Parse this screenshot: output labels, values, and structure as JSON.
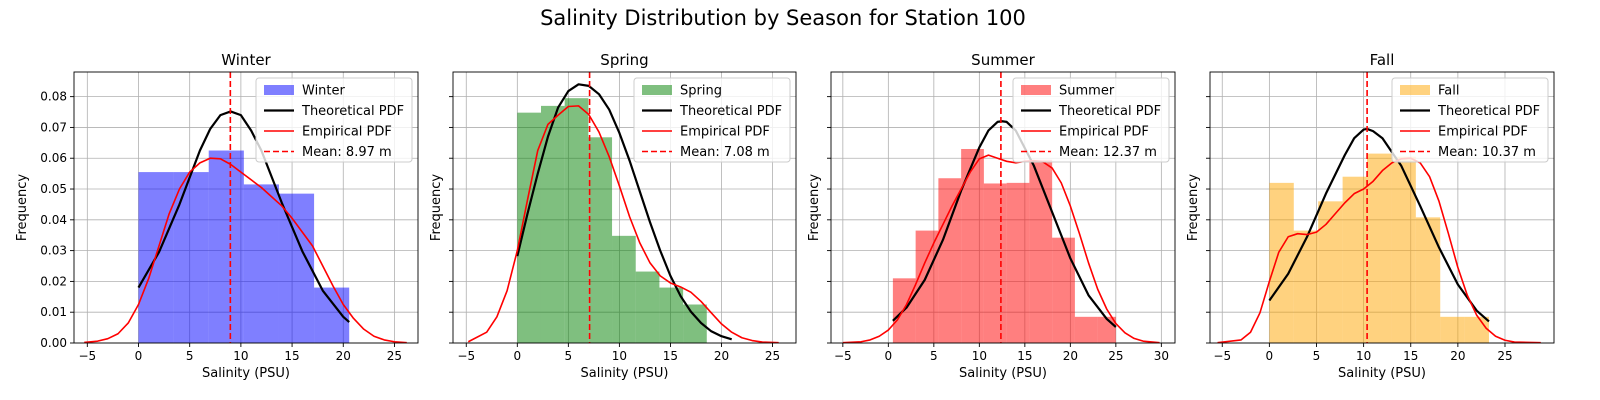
{
  "figure": {
    "title": "Salinity Distribution by Season for Station 100"
  },
  "chart_data": [
    {
      "type": "bar",
      "title": "Winter",
      "xlabel": "Salinity (PSU)",
      "ylabel": "Frequency",
      "xlim": [
        -6.3,
        27.3
      ],
      "ylim": [
        0,
        0.088
      ],
      "xticks": [
        "-5",
        "0",
        "5",
        "10",
        "15",
        "20",
        "25"
      ],
      "yticks": [
        "0.00",
        "0.01",
        "0.02",
        "0.03",
        "0.04",
        "0.05",
        "0.06",
        "0.07",
        "0.08"
      ],
      "grid": true,
      "legend_position": "top-right",
      "color": "#0000ff",
      "histogram": {
        "bin_edges": [
          0,
          3.43,
          6.86,
          10.29,
          13.72,
          17.15,
          20.58
        ],
        "values": [
          0.0555,
          0.0555,
          0.0625,
          0.0515,
          0.0485,
          0.018
        ]
      },
      "theoretical_pdf": {
        "x": [
          0,
          2,
          4,
          6,
          7,
          8,
          9,
          10,
          11,
          12,
          14,
          16,
          18,
          20,
          20.58
        ],
        "y": [
          0.018,
          0.0295,
          0.045,
          0.0625,
          0.0695,
          0.074,
          0.0752,
          0.074,
          0.069,
          0.0625,
          0.0455,
          0.0298,
          0.017,
          0.0085,
          0.0068
        ]
      },
      "empirical_pdf": {
        "x": [
          -5.3,
          -4,
          -3,
          -2,
          -1,
          0,
          1,
          2,
          3,
          4,
          5,
          6,
          7,
          8,
          9,
          10,
          11,
          12,
          13,
          14,
          15,
          16,
          17,
          18,
          19,
          20,
          21,
          22,
          23,
          24,
          25,
          26.2
        ],
        "y": [
          0.0002,
          0.0006,
          0.0014,
          0.003,
          0.0065,
          0.0125,
          0.021,
          0.0315,
          0.042,
          0.05,
          0.0555,
          0.0585,
          0.06,
          0.0598,
          0.058,
          0.0555,
          0.053,
          0.0505,
          0.0475,
          0.0445,
          0.0405,
          0.036,
          0.0315,
          0.025,
          0.0185,
          0.0125,
          0.008,
          0.0045,
          0.0022,
          0.001,
          0.0004,
          0.0001
        ]
      },
      "mean": 8.97,
      "legend": [
        "Winter",
        "Theoretical PDF",
        "Empirical PDF",
        "Mean: 8.97 m"
      ]
    },
    {
      "type": "bar",
      "title": "Spring",
      "xlabel": "Salinity (PSU)",
      "ylabel": "Frequency",
      "xlim": [
        -6.3,
        27.3
      ],
      "ylim": [
        0,
        0.088
      ],
      "xticks": [
        "-5",
        "0",
        "5",
        "10",
        "15",
        "20",
        "25"
      ],
      "yticks": [
        "0.00",
        "0.01",
        "0.02",
        "0.03",
        "0.04",
        "0.05",
        "0.06",
        "0.07",
        "0.08"
      ],
      "grid": true,
      "legend_position": "top-right",
      "color": "#008000",
      "histogram": {
        "bin_edges": [
          0,
          2.32,
          4.64,
          6.96,
          9.28,
          11.6,
          13.92,
          16.24,
          18.56
        ],
        "values": [
          0.0748,
          0.077,
          0.0795,
          0.0668,
          0.0348,
          0.0232,
          0.018,
          0.0125
        ]
      },
      "theoretical_pdf": {
        "x": [
          0,
          1,
          2,
          3,
          4,
          5,
          6,
          7,
          8,
          9,
          10,
          11,
          12,
          13,
          14,
          15,
          16,
          17,
          18,
          19,
          20,
          21
        ],
        "y": [
          0.0282,
          0.042,
          0.055,
          0.067,
          0.0765,
          0.0818,
          0.084,
          0.0835,
          0.0808,
          0.0758,
          0.0682,
          0.0592,
          0.0492,
          0.0392,
          0.03,
          0.0218,
          0.0152,
          0.0102,
          0.0065,
          0.0038,
          0.0022,
          0.0012
        ]
      },
      "empirical_pdf": {
        "x": [
          -4.8,
          -3,
          -2,
          -1,
          0,
          1,
          2,
          3,
          4,
          5,
          6,
          7,
          8,
          9,
          10,
          11,
          12,
          13,
          14,
          15,
          16,
          17,
          18,
          19,
          20,
          21,
          22,
          23,
          24,
          25.6
        ],
        "y": [
          0.0004,
          0.0035,
          0.0085,
          0.017,
          0.03,
          0.0465,
          0.0625,
          0.071,
          0.074,
          0.0768,
          0.077,
          0.0742,
          0.0685,
          0.0605,
          0.051,
          0.041,
          0.0325,
          0.026,
          0.0218,
          0.0195,
          0.0182,
          0.0165,
          0.0135,
          0.0098,
          0.0062,
          0.0035,
          0.0017,
          0.0008,
          0.0003,
          0.0001
        ]
      },
      "mean": 7.08,
      "legend": [
        "Spring",
        "Theoretical PDF",
        "Empirical PDF",
        "Mean: 7.08 m"
      ]
    },
    {
      "type": "bar",
      "title": "Summer",
      "xlabel": "Salinity (PSU)",
      "ylabel": "Frequency",
      "xlim": [
        -6.3,
        31.5
      ],
      "ylim": [
        0,
        0.088
      ],
      "xticks": [
        "-5",
        "0",
        "5",
        "10",
        "15",
        "20",
        "25",
        "30"
      ],
      "yticks": [
        "0.00",
        "0.01",
        "0.02",
        "0.03",
        "0.04",
        "0.05",
        "0.06",
        "0.07",
        "0.08"
      ],
      "grid": true,
      "legend_position": "top-right",
      "color": "#ff0000",
      "histogram": {
        "bin_edges": [
          0.5,
          3.0,
          5.5,
          8.0,
          10.5,
          13.0,
          15.5,
          18.0,
          20.5,
          23.0,
          25.0
        ],
        "values": [
          0.021,
          0.0365,
          0.0535,
          0.063,
          0.0518,
          0.052,
          0.0595,
          0.0342,
          0.0085,
          0.0085
        ]
      },
      "theoretical_pdf": {
        "x": [
          0.5,
          2,
          4,
          6,
          8,
          10,
          11,
          12,
          12.5,
          13,
          14,
          16,
          18,
          20,
          22,
          24,
          25
        ],
        "y": [
          0.0072,
          0.0115,
          0.0205,
          0.0335,
          0.0495,
          0.0635,
          0.069,
          0.0718,
          0.072,
          0.0718,
          0.069,
          0.0575,
          0.0425,
          0.0275,
          0.0155,
          0.0078,
          0.0052
        ]
      },
      "empirical_pdf": {
        "x": [
          -5,
          -3,
          -2,
          -1,
          0,
          1,
          2,
          3,
          4,
          5,
          6,
          7,
          8,
          9,
          10,
          11,
          12,
          13,
          14,
          15,
          16,
          17,
          18,
          19,
          20,
          21,
          22,
          23,
          24,
          25,
          26,
          27,
          28,
          29.8
        ],
        "y": [
          0.0001,
          0.0004,
          0.001,
          0.0022,
          0.0042,
          0.0075,
          0.0125,
          0.019,
          0.026,
          0.0325,
          0.0385,
          0.0445,
          0.05,
          0.0555,
          0.0598,
          0.061,
          0.06,
          0.059,
          0.0585,
          0.059,
          0.0592,
          0.0588,
          0.0568,
          0.052,
          0.0445,
          0.0355,
          0.026,
          0.0175,
          0.011,
          0.0063,
          0.0033,
          0.0015,
          0.0006,
          0.0001
        ]
      },
      "mean": 12.37,
      "legend": [
        "Summer",
        "Theoretical PDF",
        "Empirical PDF",
        "Mean: 12.37 m"
      ]
    },
    {
      "type": "bar",
      "title": "Fall",
      "xlabel": "Salinity (PSU)",
      "ylabel": "Frequency",
      "xlim": [
        -6.3,
        30.2
      ],
      "ylim": [
        0,
        0.088
      ],
      "xticks": [
        "-5",
        "0",
        "5",
        "10",
        "15",
        "20",
        "25"
      ],
      "yticks": [
        "0.00",
        "0.01",
        "0.02",
        "0.03",
        "0.04",
        "0.05",
        "0.06",
        "0.07",
        "0.08"
      ],
      "grid": true,
      "legend_position": "top-right",
      "color": "#ffa500",
      "histogram": {
        "bin_edges": [
          0,
          2.59,
          5.18,
          7.77,
          10.36,
          12.95,
          15.54,
          18.13,
          20.72,
          23.3
        ],
        "values": [
          0.052,
          0.0365,
          0.046,
          0.054,
          0.0615,
          0.0605,
          0.0408,
          0.0085,
          0.0085
        ]
      },
      "theoretical_pdf": {
        "x": [
          0,
          2,
          4,
          6,
          8,
          9,
          10,
          10.37,
          11,
          12,
          14,
          16,
          18,
          20,
          22,
          23.3
        ],
        "y": [
          0.0138,
          0.0225,
          0.0345,
          0.0485,
          0.061,
          0.0665,
          0.0693,
          0.0695,
          0.0688,
          0.0665,
          0.0575,
          0.0445,
          0.031,
          0.019,
          0.0105,
          0.007
        ]
      },
      "empirical_pdf": {
        "x": [
          -5.5,
          -3,
          -2,
          -1,
          0,
          1,
          2,
          3,
          4,
          5,
          6,
          7,
          8,
          9,
          10,
          11,
          12,
          13,
          14,
          15,
          16,
          17,
          18,
          19,
          20,
          21,
          22,
          23,
          24,
          25,
          26,
          28.8
        ],
        "y": [
          0.0001,
          0.001,
          0.0035,
          0.0098,
          0.02,
          0.0295,
          0.0345,
          0.0355,
          0.0352,
          0.036,
          0.0385,
          0.042,
          0.0455,
          0.0485,
          0.05,
          0.0525,
          0.056,
          0.0585,
          0.0598,
          0.06,
          0.0585,
          0.054,
          0.046,
          0.0355,
          0.0245,
          0.0155,
          0.009,
          0.0048,
          0.0022,
          0.0009,
          0.0003,
          0.0001
        ]
      },
      "mean": 10.37,
      "legend": [
        "Fall",
        "Theoretical PDF",
        "Empirical PDF",
        "Mean: 10.37 m"
      ]
    }
  ]
}
